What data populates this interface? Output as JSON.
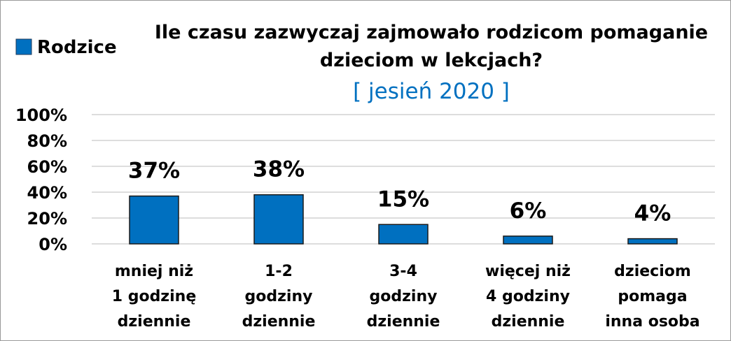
{
  "chart_data": {
    "type": "bar",
    "title": "Ile czasu zazwyczaj zajmowało rodzicom pomaganie\ndzieciom w lekcjach?",
    "subtitle": "[ jesień 2020 ]",
    "categories": [
      "mniej niż\n1 godzinę\ndziennie",
      "1-2\ngodziny\ndziennie",
      "3-4\ngodziny\ndziennie",
      "więcej niż\n4 godziny\ndziennie",
      "dzieciom\npomaga\ninna osoba"
    ],
    "series": [
      {
        "name": "Rodzice",
        "color": "#0070c0",
        "values": [
          37,
          38,
          15,
          6,
          4
        ],
        "value_labels": [
          "37%",
          "38%",
          "15%",
          "6%",
          "4%"
        ]
      }
    ],
    "ylim": [
      0,
      100
    ],
    "yticks": [
      {
        "value": 0,
        "label": "0%"
      },
      {
        "value": 20,
        "label": "20%"
      },
      {
        "value": 40,
        "label": "40%"
      },
      {
        "value": 60,
        "label": "60%"
      },
      {
        "value": 80,
        "label": "80%"
      },
      {
        "value": 100,
        "label": "100%"
      }
    ],
    "grid": true,
    "legend": "top-left"
  }
}
